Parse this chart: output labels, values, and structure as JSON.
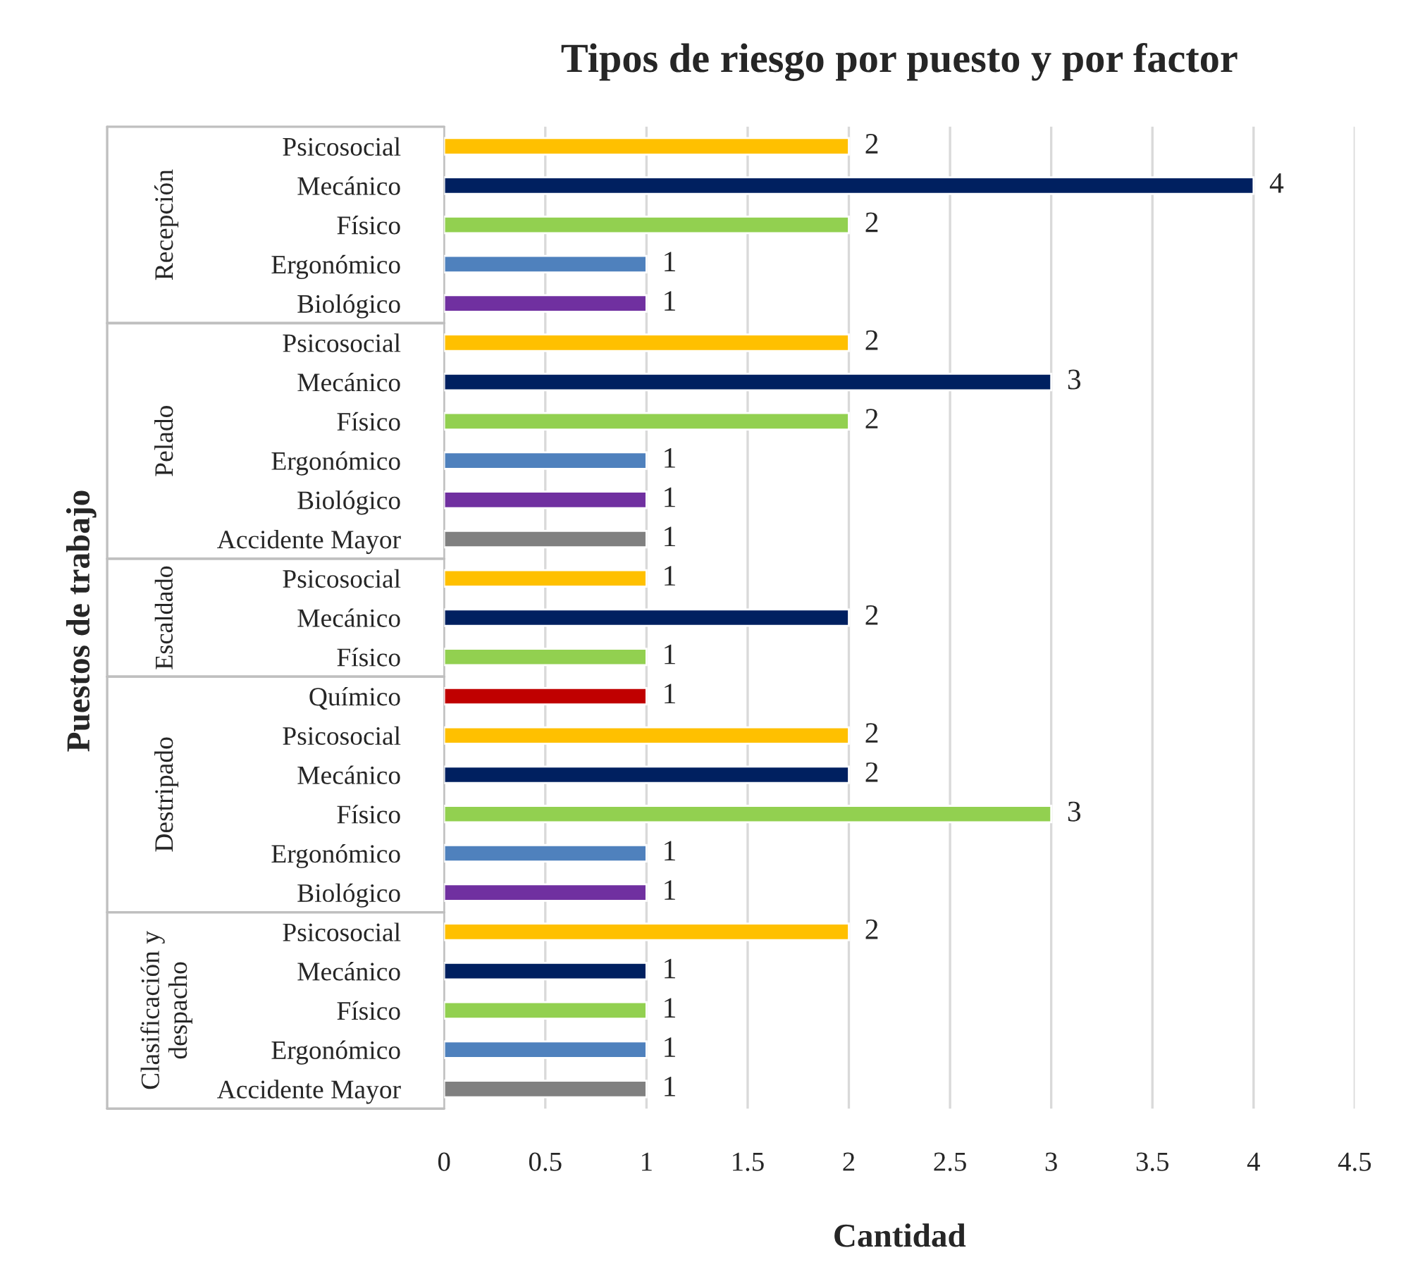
{
  "chart_data": {
    "type": "bar",
    "orientation": "horizontal",
    "title": "Tipos de riesgo por puesto y por factor",
    "xlabel": "Cantidad",
    "ylabel": "Puestos de trabajo",
    "categories": [
      "Psicosocial",
      "Mecánico",
      "Físico",
      "Ergonómico",
      "Biológico",
      "Psicosocial",
      "Mecánico",
      "Físico",
      "Ergonómico",
      "Biológico",
      "Accidente Mayor",
      "Psicosocial",
      "Mecánico",
      "Físico",
      "Químico",
      "Psicosocial",
      "Mecánico",
      "Físico",
      "Ergonómico",
      "Biológico",
      "Psicosocial",
      "Mecánico",
      "Físico",
      "Ergonómico",
      "Accidente Mayor"
    ],
    "values": [
      2,
      4,
      2,
      1,
      1,
      2,
      3,
      2,
      1,
      1,
      1,
      1,
      2,
      1,
      1,
      2,
      2,
      3,
      1,
      1,
      2,
      1,
      1,
      1,
      1
    ],
    "colors": [
      "#ffc000",
      "#002060",
      "#92d050",
      "#4f81bd",
      "#7030a0",
      "#ffc000",
      "#002060",
      "#92d050",
      "#4f81bd",
      "#7030a0",
      "#808080",
      "#ffc000",
      "#002060",
      "#92d050",
      "#c00000",
      "#ffc000",
      "#002060",
      "#92d050",
      "#4f81bd",
      "#7030a0",
      "#ffc000",
      "#002060",
      "#92d050",
      "#4f81bd",
      "#808080"
    ],
    "annotations": [
      "Recepción",
      "Pelado",
      "Escaldado",
      "Destripado",
      "Clasificación y\ndespacho"
    ],
    "xlim": [
      0,
      4.5
    ],
    "xticks": [
      0,
      0.5,
      1,
      1.5,
      2,
      2.5,
      3,
      3.5,
      4,
      4.5
    ],
    "grid": "x",
    "data_labels": true
  }
}
